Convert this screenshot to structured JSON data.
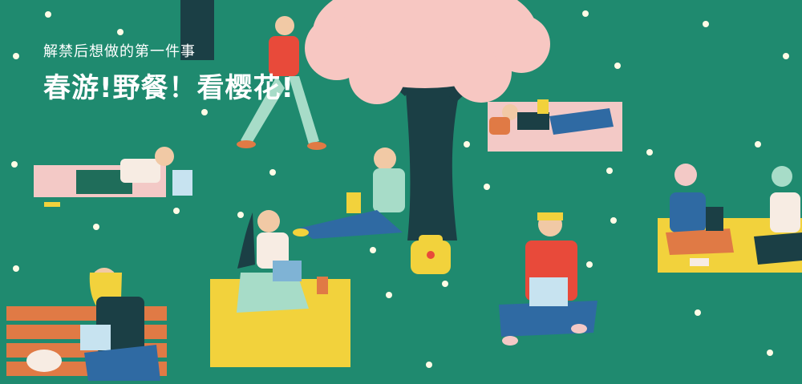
{
  "caption": {
    "subtitle": "解禁后想做的第一件事",
    "headline": "春游!野餐！看樱花!"
  },
  "illustration": {
    "description_colors": {
      "grass": "#1f8a6f",
      "tree_trunk": "#1b3f45",
      "blossom": "#f7c7c2",
      "blanket_yellow": "#f2d23c",
      "blanket_pink": "#f3c9c6",
      "bench": "#e07a45"
    }
  }
}
